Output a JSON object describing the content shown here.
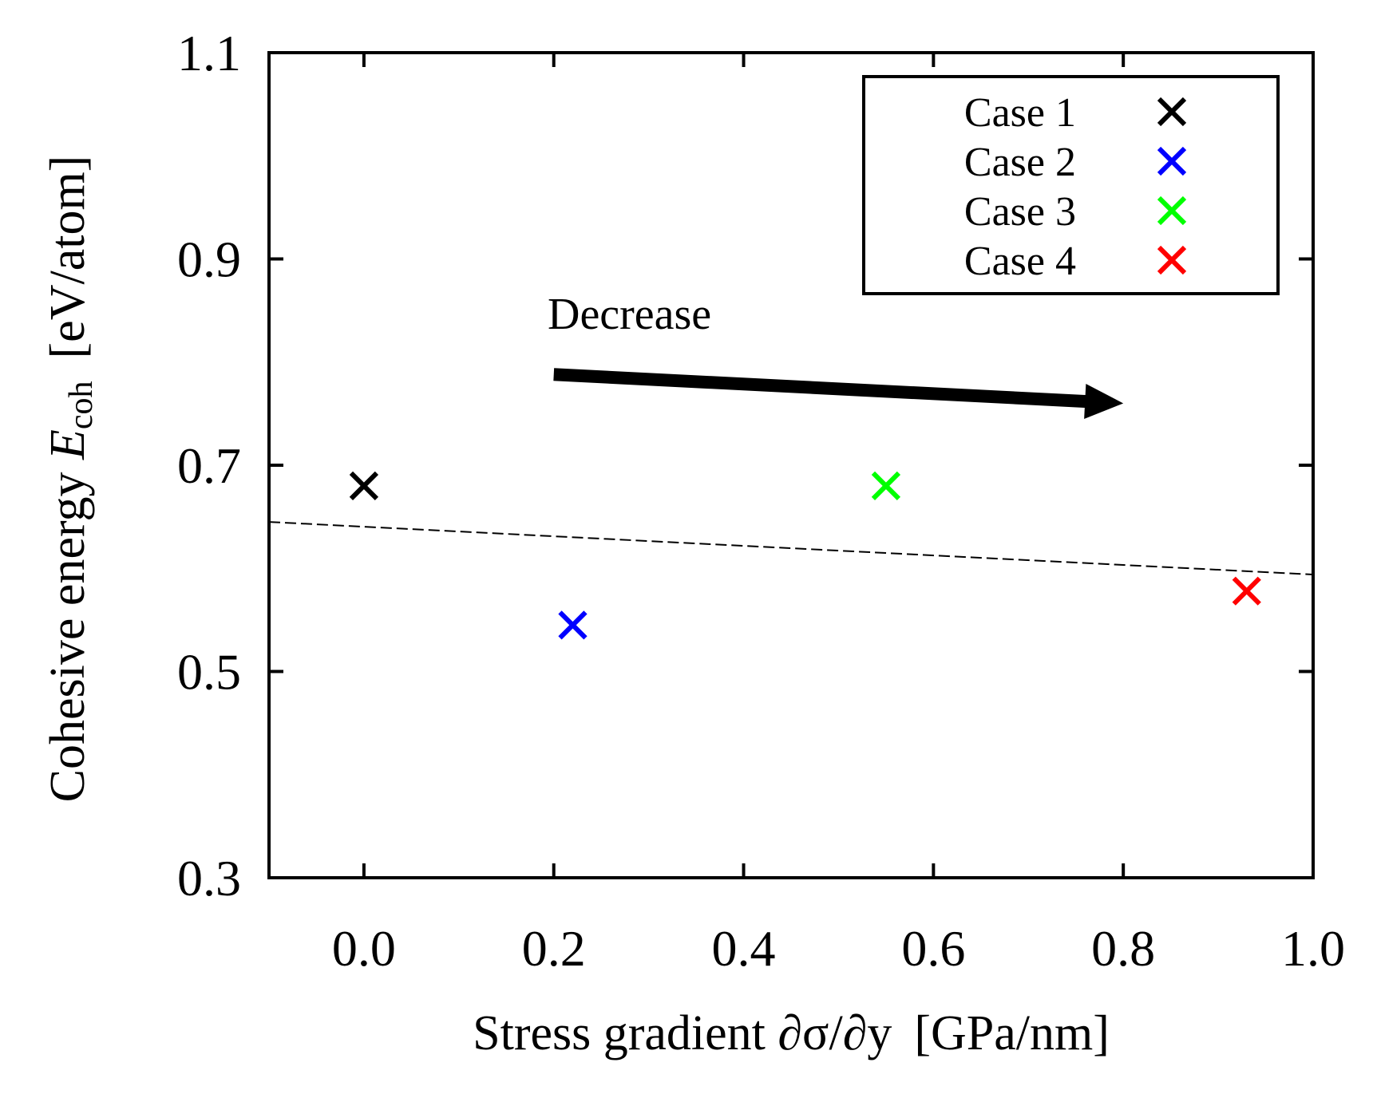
{
  "chart_data": {
    "type": "scatter",
    "title": "",
    "xlabel": {
      "main": "Stress gradient ",
      "symbol": "∂σ/∂y",
      "unit": "[GPa/nm]"
    },
    "ylabel": {
      "main": "Cohesive energy ",
      "symbol": "E",
      "subscript": "coh",
      "unit": "[eV/atom]"
    },
    "xlim": [
      -0.1,
      1.0
    ],
    "ylim": [
      0.3,
      1.1
    ],
    "xticks": [
      0.0,
      0.2,
      0.4,
      0.6,
      0.8,
      1.0
    ],
    "xtick_labels": [
      "0.0",
      "0.2",
      "0.4",
      "0.6",
      "0.8",
      "1.0"
    ],
    "yticks": [
      0.3,
      0.5,
      0.7,
      0.9,
      1.1
    ],
    "ytick_labels": [
      "0.3",
      "0.5",
      "0.7",
      "0.9",
      "1.1"
    ],
    "series": [
      {
        "name": "Case 1",
        "color": "#000000",
        "marker": "x",
        "x": 0.0,
        "y": 0.68
      },
      {
        "name": "Case 2",
        "color": "#0000ff",
        "marker": "x",
        "x": 0.22,
        "y": 0.545
      },
      {
        "name": "Case 3",
        "color": "#00ff00",
        "marker": "x",
        "x": 0.55,
        "y": 0.68
      },
      {
        "name": "Case 4",
        "color": "#ff0000",
        "marker": "x",
        "x": 0.93,
        "y": 0.578
      }
    ],
    "trendline": {
      "style": "dashed",
      "color": "#000000",
      "x": [
        -0.1,
        1.0
      ],
      "y": [
        0.645,
        0.594
      ]
    },
    "annotation": {
      "text": "Decrease",
      "arrow_from": [
        0.2,
        0.788
      ],
      "arrow_to": [
        0.8,
        0.76
      ]
    },
    "legend": {
      "position": "top-right"
    },
    "grid": false
  }
}
